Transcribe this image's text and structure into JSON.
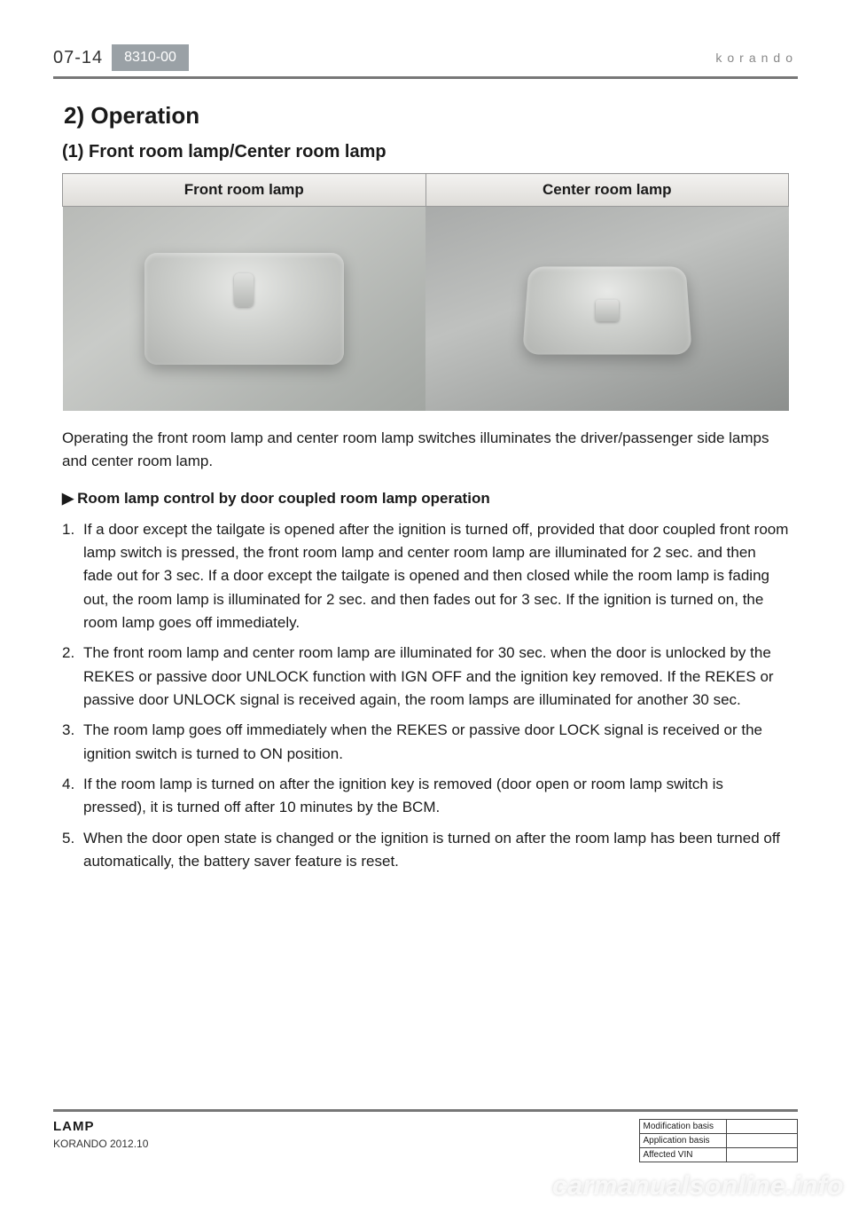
{
  "header": {
    "page_number": "07-14",
    "section_code": "8310-00",
    "brand": "KORANDO"
  },
  "content": {
    "title": "2) Operation",
    "subtitle": "(1) Front room lamp/Center room lamp",
    "table": {
      "columns": [
        "Front room lamp",
        "Center room lamp"
      ]
    },
    "intro": "Operating the front room lamp and center room lamp switches illuminates the driver/passenger side lamps and center room lamp.",
    "sub_heading_marker": "▶",
    "sub_heading": "Room lamp control by door coupled room lamp operation",
    "items": [
      "If a door except the tailgate is opened after the ignition is turned off, provided that door coupled front room lamp switch is pressed, the front room lamp and center room lamp are illuminated for 2 sec. and then fade out for 3 sec.\nIf a door except the tailgate is opened and then closed while the room lamp is fading out, the room lamp is illuminated for 2 sec. and then fades out for 3 sec. If the ignition is turned on, the room lamp goes off immediately.",
      "The front room lamp and center room lamp are illuminated for 30 sec. when the door is unlocked by the REKES or passive door UNLOCK function with IGN OFF and the ignition key removed. If the REKES or passive door UNLOCK signal is received again, the room lamps are illuminated for another 30 sec.",
      "The room lamp goes off immediately when the REKES or passive door LOCK signal is received or the ignition switch is turned to ON position.",
      "If the room lamp is turned on after the ignition key is removed (door open or room lamp switch is pressed), it is turned off after 10 minutes by the BCM.",
      "When the door open state is changed or the ignition is turned on after the room lamp has been turned off automatically, the battery saver feature is reset."
    ]
  },
  "footer": {
    "section_name": "LAMP",
    "model_date": "KORANDO 2012.10",
    "table_rows": [
      "Modification basis",
      "Application basis",
      "Affected VIN"
    ]
  },
  "watermark": "carmanualsonline.info"
}
